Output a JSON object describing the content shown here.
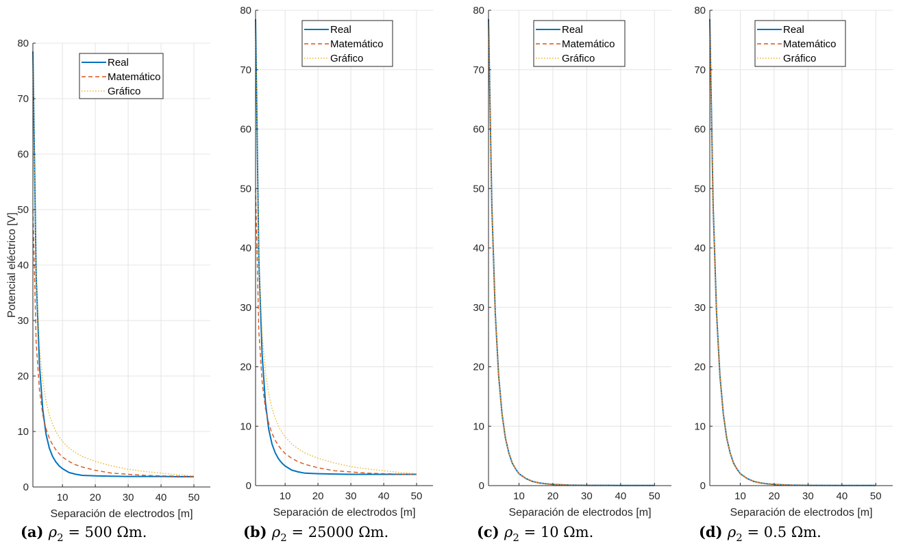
{
  "chart_data": [
    {
      "type": "line",
      "caption_tag": "(a)",
      "caption_expr": {
        "symbol": "ρ",
        "subscript": "2",
        "equals": "=",
        "value": "500",
        "unit": "Ωm."
      },
      "xlabel": "Separación de electrodos [m]",
      "ylabel": "Potencial eléctrico [V]",
      "xlim": [
        1,
        55
      ],
      "ylim": [
        0,
        80
      ],
      "xticks": [
        10,
        20,
        30,
        40,
        50
      ],
      "yticks": [
        0,
        10,
        20,
        30,
        40,
        50,
        60,
        70,
        80
      ],
      "grid": true,
      "legend_position": "top-center",
      "series": [
        {
          "name": "Real",
          "color": "#0072BD",
          "style": "solid",
          "x": [
            1,
            2,
            3,
            4,
            5,
            6,
            7,
            8,
            9,
            10,
            12,
            14,
            16,
            20,
            25,
            30,
            35,
            40,
            45,
            50
          ],
          "y": [
            78.5,
            38,
            22,
            14,
            9.5,
            7,
            5.5,
            4.5,
            3.8,
            3.3,
            2.6,
            2.3,
            2.1,
            2.0,
            1.95,
            1.9,
            1.9,
            1.9,
            1.85,
            1.85
          ]
        },
        {
          "name": "Matemático",
          "color": "#D95319",
          "style": "dashed",
          "x": [
            1,
            2,
            3,
            4,
            5,
            6,
            7,
            8,
            9,
            10,
            12,
            14,
            16,
            20,
            25,
            30,
            35,
            40,
            45,
            50
          ],
          "y": [
            50,
            26,
            17.5,
            13,
            10.5,
            8.8,
            7.6,
            6.7,
            6.0,
            5.4,
            4.6,
            4.0,
            3.6,
            3.0,
            2.5,
            2.3,
            2.1,
            2.0,
            1.95,
            1.9
          ]
        },
        {
          "name": "Gráfico",
          "color": "#EDB120",
          "style": "dotted",
          "x": [
            1,
            2,
            3,
            4,
            5,
            6,
            7,
            8,
            9,
            10,
            12,
            14,
            16,
            20,
            25,
            30,
            35,
            40,
            45,
            50
          ],
          "y": [
            78,
            38,
            25.5,
            19,
            15.5,
            13,
            11.3,
            10,
            9,
            8.2,
            7,
            6.2,
            5.5,
            4.6,
            3.8,
            3.2,
            2.8,
            2.5,
            2.2,
            2.0
          ]
        }
      ]
    },
    {
      "type": "line",
      "caption_tag": "(b)",
      "caption_expr": {
        "symbol": "ρ",
        "subscript": "2",
        "equals": "=",
        "value": "25000",
        "unit": "Ωm."
      },
      "xlabel": "Separación de electrodos [m]",
      "ylabel": "",
      "xlim": [
        1,
        55
      ],
      "ylim": [
        0,
        80
      ],
      "xticks": [
        10,
        20,
        30,
        40,
        50
      ],
      "yticks": [
        0,
        10,
        20,
        30,
        40,
        50,
        60,
        70,
        80
      ],
      "grid": true,
      "legend_position": "top-center",
      "series": [
        {
          "name": "Real",
          "color": "#0072BD",
          "style": "solid",
          "x": [
            1,
            2,
            3,
            4,
            5,
            6,
            7,
            8,
            9,
            10,
            12,
            14,
            16,
            20,
            25,
            30,
            35,
            40,
            45,
            50
          ],
          "y": [
            78.5,
            38,
            22,
            14,
            9.5,
            7,
            5.5,
            4.5,
            3.8,
            3.3,
            2.6,
            2.3,
            2.1,
            2.0,
            1.95,
            1.9,
            1.9,
            1.9,
            1.9,
            1.9
          ]
        },
        {
          "name": "Matemático",
          "color": "#D95319",
          "style": "dashed",
          "x": [
            1,
            2,
            3,
            4,
            5,
            6,
            7,
            8,
            9,
            10,
            12,
            14,
            16,
            20,
            25,
            30,
            35,
            40,
            45,
            50
          ],
          "y": [
            50,
            26,
            17.5,
            13,
            10.5,
            8.8,
            7.6,
            6.7,
            6.0,
            5.4,
            4.6,
            4.0,
            3.6,
            3.0,
            2.5,
            2.3,
            2.1,
            2.0,
            1.95,
            1.9
          ]
        },
        {
          "name": "Gráfico",
          "color": "#EDB120",
          "style": "dotted",
          "x": [
            1,
            2,
            3,
            4,
            5,
            6,
            7,
            8,
            9,
            10,
            12,
            14,
            16,
            20,
            25,
            30,
            35,
            40,
            45,
            50
          ],
          "y": [
            78,
            38,
            25.5,
            19,
            15.5,
            13,
            11.3,
            10,
            9,
            8.2,
            7,
            6.2,
            5.5,
            4.6,
            3.8,
            3.2,
            2.8,
            2.5,
            2.2,
            2.0
          ]
        }
      ]
    },
    {
      "type": "line",
      "caption_tag": "(c)",
      "caption_expr": {
        "symbol": "ρ",
        "subscript": "2",
        "equals": "=",
        "value": "10",
        "unit": "Ωm."
      },
      "xlabel": "Separación de electrodos [m]",
      "ylabel": "",
      "xlim": [
        1,
        55
      ],
      "ylim": [
        0,
        80
      ],
      "xticks": [
        10,
        20,
        30,
        40,
        50
      ],
      "yticks": [
        0,
        10,
        20,
        30,
        40,
        50,
        60,
        70,
        80
      ],
      "grid": true,
      "legend_position": "top-center",
      "series": [
        {
          "name": "Real",
          "color": "#0072BD",
          "style": "solid",
          "x": [
            1,
            2,
            3,
            4,
            5,
            6,
            7,
            8,
            9,
            10,
            12,
            14,
            16,
            18,
            20,
            25,
            30,
            40,
            50
          ],
          "y": [
            78.5,
            47,
            29,
            18.5,
            12,
            8,
            5.5,
            3.8,
            2.8,
            2.0,
            1.2,
            0.7,
            0.45,
            0.3,
            0.2,
            0.08,
            0.05,
            0.03,
            0.02
          ]
        },
        {
          "name": "Matemático",
          "color": "#D95319",
          "style": "dashed",
          "x": [
            1,
            2,
            3,
            4,
            5,
            6,
            7,
            8,
            9,
            10,
            12,
            14,
            16,
            18,
            20,
            25,
            30,
            40,
            50
          ],
          "y": [
            78,
            46.5,
            28.8,
            18.4,
            12,
            8,
            5.5,
            3.8,
            2.8,
            2.0,
            1.2,
            0.7,
            0.45,
            0.3,
            0.2,
            0.08,
            0.05,
            0.03,
            0.02
          ]
        },
        {
          "name": "Gráfico",
          "color": "#EDB120",
          "style": "dotted",
          "x": [
            1,
            2,
            3,
            4,
            5,
            6,
            7,
            8,
            9,
            10,
            12,
            14,
            16,
            18,
            20,
            25,
            30,
            40,
            50
          ],
          "y": [
            78,
            46.8,
            29,
            18.5,
            12,
            8,
            5.5,
            3.8,
            2.8,
            2.0,
            1.2,
            0.7,
            0.45,
            0.3,
            0.2,
            0.08,
            0.05,
            0.03,
            0.02
          ]
        }
      ]
    },
    {
      "type": "line",
      "caption_tag": "(d)",
      "caption_expr": {
        "symbol": "ρ",
        "subscript": "2",
        "equals": "=",
        "value": "0.5",
        "unit": "Ωm."
      },
      "xlabel": "Separación de electrodos [m]",
      "ylabel": "",
      "xlim": [
        1,
        55
      ],
      "ylim": [
        0,
        80
      ],
      "xticks": [
        10,
        20,
        30,
        40,
        50
      ],
      "yticks": [
        0,
        10,
        20,
        30,
        40,
        50,
        60,
        70,
        80
      ],
      "grid": true,
      "legend_position": "top-center",
      "series": [
        {
          "name": "Real",
          "color": "#0072BD",
          "style": "solid",
          "x": [
            1,
            2,
            3,
            4,
            5,
            6,
            7,
            8,
            9,
            10,
            12,
            14,
            16,
            18,
            20,
            25,
            30,
            40,
            50
          ],
          "y": [
            78.5,
            47,
            29,
            18.5,
            12,
            8,
            5.5,
            3.8,
            2.8,
            2.0,
            1.2,
            0.7,
            0.45,
            0.3,
            0.2,
            0.08,
            0.05,
            0.03,
            0.02
          ]
        },
        {
          "name": "Matemático",
          "color": "#D95319",
          "style": "dashed",
          "x": [
            1,
            2,
            3,
            4,
            5,
            6,
            7,
            8,
            9,
            10,
            12,
            14,
            16,
            18,
            20,
            25,
            30,
            40,
            50
          ],
          "y": [
            78,
            46.5,
            28.8,
            18.4,
            12,
            8,
            5.5,
            3.8,
            2.8,
            2.0,
            1.2,
            0.7,
            0.45,
            0.3,
            0.2,
            0.08,
            0.05,
            0.03,
            0.02
          ]
        },
        {
          "name": "Gráfico",
          "color": "#EDB120",
          "style": "dotted",
          "x": [
            1,
            2,
            3,
            4,
            5,
            6,
            7,
            8,
            9,
            10,
            12,
            14,
            16,
            18,
            20,
            25,
            30,
            40,
            50
          ],
          "y": [
            78,
            46.8,
            29,
            18.5,
            12,
            8,
            5.5,
            3.8,
            2.8,
            2.0,
            1.2,
            0.7,
            0.45,
            0.3,
            0.2,
            0.08,
            0.05,
            0.03,
            0.02
          ]
        }
      ]
    }
  ]
}
